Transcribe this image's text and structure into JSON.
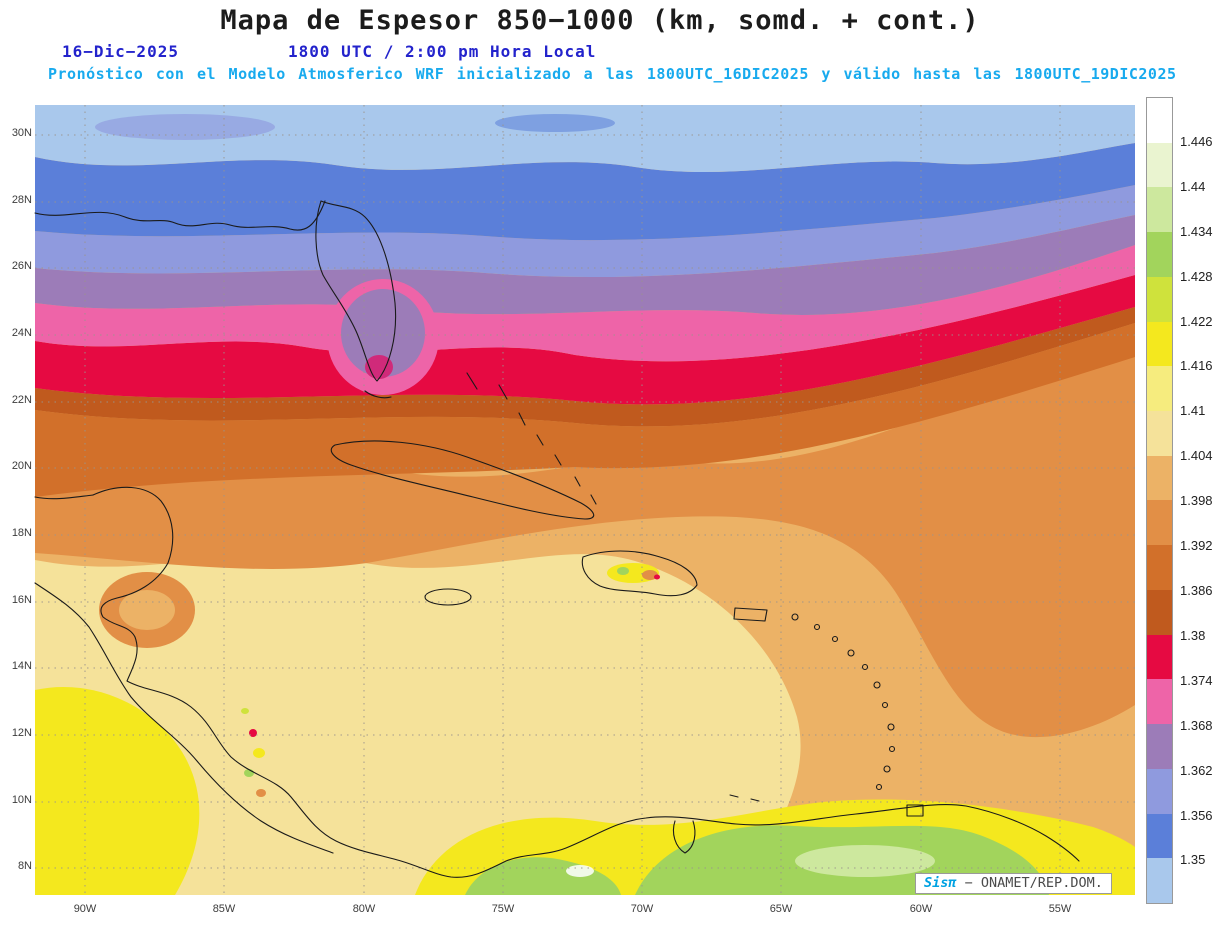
{
  "header": {
    "title": "Mapa de Espesor 850−1000 (km, somd. + cont.)",
    "date": "16−Dic−2025",
    "time": "1800 UTC / 2:00 pm Hora Local",
    "forecast": "Pronóstico con el Modelo Atmosferico WRF inicializado a las 1800UTC_16DIC2025 y válido hasta las  1800UTC_19DIC2025"
  },
  "axes": {
    "lat": [
      "30N",
      "28N",
      "26N",
      "24N",
      "22N",
      "20N",
      "18N",
      "16N",
      "14N",
      "12N",
      "10N",
      "8N"
    ],
    "lon": [
      "90W",
      "85W",
      "80W",
      "75W",
      "70W",
      "65W",
      "60W",
      "55W"
    ]
  },
  "colorbar": {
    "labels": [
      "1.446",
      "1.44",
      "1.434",
      "1.428",
      "1.422",
      "1.416",
      "1.41",
      "1.404",
      "1.398",
      "1.392",
      "1.386",
      "1.38",
      "1.374",
      "1.368",
      "1.362",
      "1.356",
      "1.35"
    ],
    "colors": [
      "#ffffff",
      "#eaf4d0",
      "#cde89e",
      "#a2d45c",
      "#cfe23c",
      "#f4e81e",
      "#f6ec7e",
      "#f5e29a",
      "#ecb266",
      "#e28f46",
      "#d2702a",
      "#c05a1e",
      "#e60a42",
      "#ee64a8",
      "#9c7cb8",
      "#8f9ade",
      "#5b7fd9",
      "#a9c8ec"
    ]
  },
  "palette": {
    "white": "#ffffff",
    "pale_green": "#eaf4d0",
    "light_green": "#cde89e",
    "green": "#a2d45c",
    "yellow_green": "#cfe23c",
    "yellow": "#f4e81e",
    "pale_yellow": "#f6ec7e",
    "cream": "#f5e29a",
    "tan": "#ecb266",
    "orange": "#e28f46",
    "dark_orange": "#d2702a",
    "brown": "#c05a1e",
    "crimson": "#e60a42",
    "pink": "#ee64a8",
    "mauve": "#9c7cb8",
    "periwinkle": "#8f9ade",
    "blue": "#5b7fd9",
    "light_blue": "#a9c8ec",
    "magenta": "#d02a7a"
  },
  "watermark": {
    "brand": "Sisπ",
    "text": "− ONAMET/REP.DOM."
  }
}
